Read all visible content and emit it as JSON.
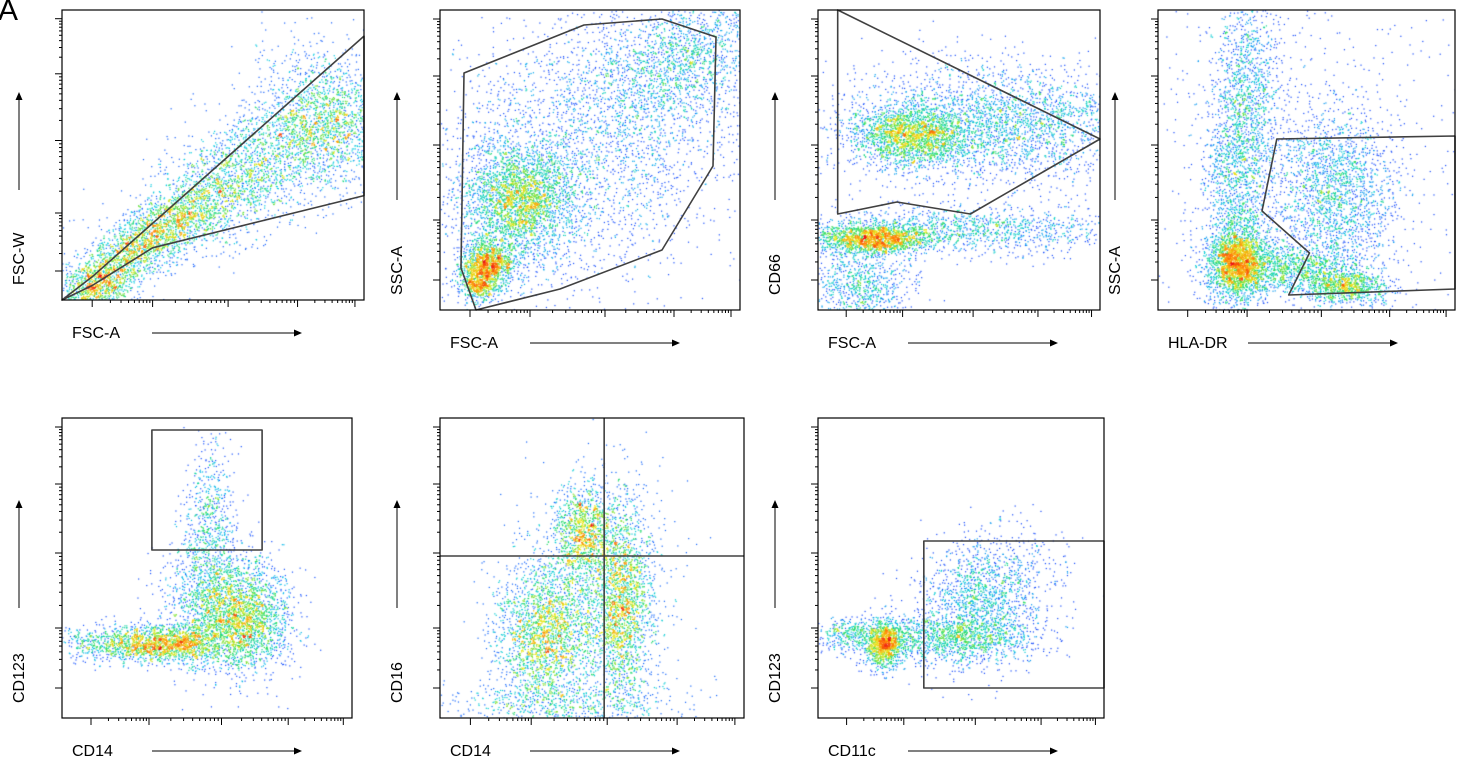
{
  "figure": {
    "panel_letter": "A"
  },
  "chart_data": [
    {
      "type": "scatter",
      "xlabel": "FSC-A",
      "ylabel": "FSC-W",
      "xlim": [
        0,
        1
      ],
      "ylim": [
        0,
        1
      ],
      "populations": [
        {
          "cx": 0.12,
          "cy": 0.05,
          "rx": 0.07,
          "ry": 0.04,
          "angle": 33,
          "n": 900
        },
        {
          "cx": 0.3,
          "cy": 0.22,
          "rx": 0.17,
          "ry": 0.05,
          "angle": 33,
          "n": 2200
        },
        {
          "cx": 0.62,
          "cy": 0.45,
          "rx": 0.22,
          "ry": 0.09,
          "angle": 33,
          "n": 2400
        },
        {
          "cx": 0.88,
          "cy": 0.62,
          "rx": 0.1,
          "ry": 0.13,
          "angle": 33,
          "n": 1400
        }
      ],
      "gates": [
        {
          "type": "polygon",
          "points": [
            [
              0.0,
              0.0
            ],
            [
              0.1,
              0.05
            ],
            [
              0.3,
              0.18
            ],
            [
              1.0,
              0.36
            ],
            [
              1.0,
              0.91
            ],
            [
              0.1,
              0.08
            ]
          ]
        }
      ]
    },
    {
      "type": "scatter",
      "xlabel": "FSC-A",
      "ylabel": "SSC-A",
      "xlim": [
        0,
        1
      ],
      "ylim": [
        0,
        1
      ],
      "populations": [
        {
          "cx": 0.26,
          "cy": 0.37,
          "rx": 0.09,
          "ry": 0.09,
          "angle": 0,
          "n": 2600
        },
        {
          "cx": 0.16,
          "cy": 0.16,
          "rx": 0.045,
          "ry": 0.04,
          "angle": 0,
          "n": 1100
        },
        {
          "cx": 0.13,
          "cy": 0.09,
          "rx": 0.035,
          "ry": 0.03,
          "angle": 0,
          "n": 600
        },
        {
          "cx": 0.5,
          "cy": 0.55,
          "rx": 0.3,
          "ry": 0.22,
          "angle": 40,
          "n": 3200
        },
        {
          "cx": 0.82,
          "cy": 0.85,
          "rx": 0.16,
          "ry": 0.1,
          "angle": 30,
          "n": 1500
        }
      ],
      "gates": [
        {
          "type": "polygon",
          "points": [
            [
              0.08,
              0.79
            ],
            [
              0.48,
              0.95
            ],
            [
              0.74,
              0.97
            ],
            [
              0.92,
              0.91
            ],
            [
              0.91,
              0.48
            ],
            [
              0.74,
              0.2
            ],
            [
              0.4,
              0.07
            ],
            [
              0.12,
              0.0
            ],
            [
              0.07,
              0.14
            ]
          ]
        }
      ]
    },
    {
      "type": "scatter",
      "xlabel": "FSC-A",
      "ylabel": "CD66",
      "xlim": [
        0,
        1
      ],
      "ylim": [
        0,
        1
      ],
      "populations": [
        {
          "cx": 0.33,
          "cy": 0.58,
          "rx": 0.1,
          "ry": 0.05,
          "angle": 0,
          "n": 1800
        },
        {
          "cx": 0.62,
          "cy": 0.62,
          "rx": 0.28,
          "ry": 0.1,
          "angle": 0,
          "n": 3200
        },
        {
          "cx": 0.2,
          "cy": 0.24,
          "rx": 0.1,
          "ry": 0.025,
          "angle": 0,
          "n": 1700
        },
        {
          "cx": 0.55,
          "cy": 0.27,
          "rx": 0.28,
          "ry": 0.04,
          "angle": 0,
          "n": 1300
        },
        {
          "cx": 0.15,
          "cy": 0.08,
          "rx": 0.09,
          "ry": 0.08,
          "angle": 0,
          "n": 900
        }
      ],
      "gates": [
        {
          "type": "polygon",
          "points": [
            [
              0.07,
              1.0
            ],
            [
              0.07,
              0.32
            ],
            [
              0.28,
              0.36
            ],
            [
              0.54,
              0.32
            ],
            [
              1.0,
              0.57
            ]
          ]
        }
      ]
    },
    {
      "type": "scatter",
      "xlabel": "HLA-DR",
      "ylabel": "SSC-A",
      "xlim": [
        0,
        1
      ],
      "ylim": [
        0,
        1
      ],
      "populations": [
        {
          "cx": 0.27,
          "cy": 0.16,
          "rx": 0.05,
          "ry": 0.06,
          "angle": 0,
          "n": 2200
        },
        {
          "cx": 0.28,
          "cy": 0.55,
          "rx": 0.06,
          "ry": 0.3,
          "angle": -5,
          "n": 2600
        },
        {
          "cx": 0.45,
          "cy": 0.14,
          "rx": 0.1,
          "ry": 0.04,
          "angle": 0,
          "n": 1000
        },
        {
          "cx": 0.59,
          "cy": 0.4,
          "rx": 0.1,
          "ry": 0.14,
          "angle": 0,
          "n": 1900
        },
        {
          "cx": 0.63,
          "cy": 0.08,
          "rx": 0.07,
          "ry": 0.03,
          "angle": 0,
          "n": 900
        },
        {
          "cx": 0.5,
          "cy": 0.5,
          "rx": 0.45,
          "ry": 0.45,
          "angle": 0,
          "n": 900
        }
      ],
      "gates": [
        {
          "type": "polygon",
          "points": [
            [
              0.4,
              0.57
            ],
            [
              1.0,
              0.58
            ],
            [
              1.0,
              0.07
            ],
            [
              0.44,
              0.05
            ],
            [
              0.51,
              0.19
            ],
            [
              0.35,
              0.33
            ]
          ]
        }
      ]
    },
    {
      "type": "scatter",
      "xlabel": "CD14",
      "ylabel": "CD123",
      "xlim": [
        0,
        1
      ],
      "ylim": [
        0,
        1
      ],
      "populations": [
        {
          "cx": 0.35,
          "cy": 0.25,
          "rx": 0.12,
          "ry": 0.03,
          "angle": 0,
          "n": 1700
        },
        {
          "cx": 0.63,
          "cy": 0.34,
          "rx": 0.08,
          "ry": 0.09,
          "angle": 0,
          "n": 2000
        },
        {
          "cx": 0.5,
          "cy": 0.4,
          "rx": 0.08,
          "ry": 0.12,
          "angle": 0,
          "n": 1200
        },
        {
          "cx": 0.51,
          "cy": 0.68,
          "rx": 0.04,
          "ry": 0.13,
          "angle": 0,
          "n": 500
        },
        {
          "cx": 0.15,
          "cy": 0.25,
          "rx": 0.08,
          "ry": 0.03,
          "angle": 0,
          "n": 300
        }
      ],
      "gates": [
        {
          "type": "rect",
          "x0": 0.31,
          "y0": 0.56,
          "x1": 0.69,
          "y1": 0.96
        }
      ]
    },
    {
      "type": "scatter",
      "xlabel": "CD14",
      "ylabel": "CD16",
      "xlim": [
        0,
        1
      ],
      "ylim": [
        0,
        1
      ],
      "populations": [
        {
          "cx": 0.34,
          "cy": 0.28,
          "rx": 0.08,
          "ry": 0.11,
          "angle": 0,
          "n": 2000
        },
        {
          "cx": 0.6,
          "cy": 0.39,
          "rx": 0.05,
          "ry": 0.17,
          "angle": 0,
          "n": 1800
        },
        {
          "cx": 0.47,
          "cy": 0.62,
          "rx": 0.05,
          "ry": 0.08,
          "angle": 0,
          "n": 1100
        },
        {
          "cx": 0.5,
          "cy": 0.4,
          "rx": 0.12,
          "ry": 0.18,
          "angle": 0,
          "n": 1200
        },
        {
          "cx": 0.4,
          "cy": 0.05,
          "rx": 0.2,
          "ry": 0.04,
          "angle": 0,
          "n": 600
        }
      ],
      "gates": [
        {
          "type": "quadrant",
          "x": 0.54,
          "y": 0.54
        }
      ]
    },
    {
      "type": "scatter",
      "xlabel": "CD11c",
      "ylabel": "CD123",
      "xlim": [
        0,
        1
      ],
      "ylim": [
        0,
        1
      ],
      "populations": [
        {
          "cx": 0.23,
          "cy": 0.25,
          "rx": 0.035,
          "ry": 0.04,
          "angle": 0,
          "n": 1100
        },
        {
          "cx": 0.45,
          "cy": 0.27,
          "rx": 0.15,
          "ry": 0.04,
          "angle": 0,
          "n": 1200
        },
        {
          "cx": 0.58,
          "cy": 0.4,
          "rx": 0.12,
          "ry": 0.1,
          "angle": 35,
          "n": 1600
        },
        {
          "cx": 0.1,
          "cy": 0.28,
          "rx": 0.05,
          "ry": 0.03,
          "angle": 0,
          "n": 300
        }
      ],
      "gates": [
        {
          "type": "rect",
          "x0": 0.37,
          "y0": 0.1,
          "x1": 1.0,
          "y1": 0.59
        }
      ]
    }
  ]
}
